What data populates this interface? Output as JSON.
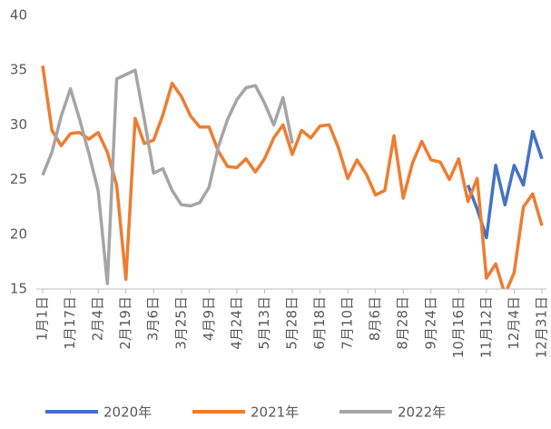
{
  "chart_data": {
    "type": "line",
    "categories": [
      "1月1日",
      null,
      null,
      "1月17日",
      null,
      null,
      "2月4日",
      null,
      null,
      "2月19日",
      null,
      null,
      "3月6日",
      null,
      null,
      "3月25日",
      null,
      null,
      "4月9日",
      null,
      null,
      "4月24日",
      null,
      null,
      "5月13日",
      null,
      null,
      "5月28日",
      null,
      null,
      "6月18日",
      null,
      null,
      "7月10日",
      null,
      null,
      "8月6日",
      null,
      null,
      "8月28日",
      null,
      null,
      "9月24日",
      null,
      null,
      "10月16日",
      null,
      null,
      "11月12日",
      null,
      null,
      "12月4日",
      null,
      null,
      "12月31日"
    ],
    "series": [
      {
        "name": "2020年",
        "color": "#4472c4",
        "values": [
          null,
          null,
          null,
          null,
          null,
          null,
          null,
          null,
          null,
          null,
          null,
          null,
          null,
          null,
          null,
          null,
          null,
          null,
          null,
          null,
          null,
          null,
          null,
          null,
          null,
          null,
          null,
          null,
          null,
          null,
          null,
          null,
          null,
          null,
          null,
          null,
          null,
          null,
          null,
          null,
          null,
          null,
          null,
          null,
          null,
          null,
          24.5,
          22.3,
          19.7,
          26.3,
          22.7,
          26.3,
          24.5,
          29.4,
          26.9
        ]
      },
      {
        "name": "2021年",
        "color": "#ed7d31",
        "values": [
          35.4,
          29.5,
          28.1,
          29.2,
          29.3,
          28.7,
          29.3,
          27.5,
          24.5,
          15.9,
          30.6,
          28.3,
          28.6,
          30.9,
          33.8,
          32.6,
          30.8,
          29.8,
          29.8,
          27.6,
          26.2,
          26.1,
          26.9,
          25.7,
          26.9,
          28.8,
          30.0,
          27.3,
          29.5,
          28.8,
          29.9,
          30.0,
          27.9,
          25.1,
          26.8,
          25.5,
          23.6,
          24.0,
          29.0,
          23.3,
          26.5,
          28.5,
          26.8,
          26.6,
          25.0,
          26.9,
          23.0,
          25.1,
          16.0,
          17.3,
          14.5,
          16.5,
          22.5,
          23.7,
          20.8
        ]
      },
      {
        "name": "2022年",
        "color": "#a5a5a5",
        "values": [
          25.4,
          27.5,
          30.8,
          33.3,
          30.5,
          27.4,
          24.0,
          15.5,
          34.2,
          34.6,
          35.0,
          30.5,
          25.6,
          26.0,
          24.0,
          22.7,
          22.6,
          22.9,
          24.3,
          28.0,
          30.5,
          32.3,
          33.4,
          33.6,
          32.0,
          30.0,
          32.5,
          28.3,
          null,
          null,
          null,
          null,
          null,
          null,
          null,
          null,
          null,
          null,
          null,
          null,
          null,
          null,
          null,
          null,
          null,
          null,
          null,
          null,
          null,
          null,
          null,
          null,
          null,
          null,
          null
        ]
      }
    ],
    "ylim": [
      15,
      40
    ],
    "yticks": [
      15,
      20,
      25,
      30,
      35,
      40
    ],
    "grid": false
  }
}
